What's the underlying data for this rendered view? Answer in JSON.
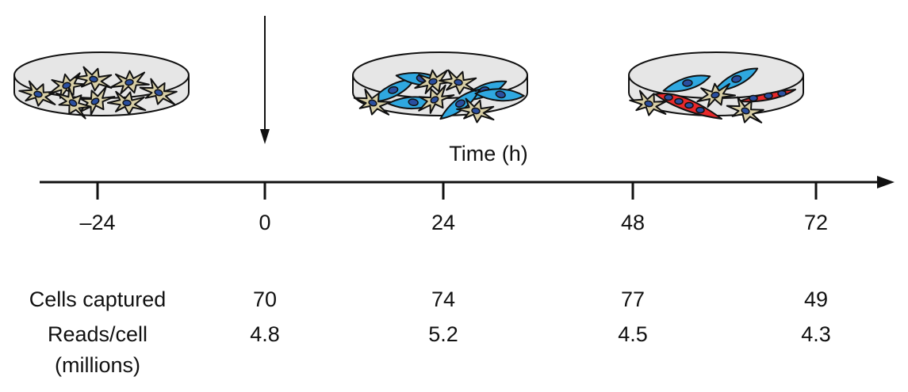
{
  "axis": {
    "title": "Time (h)",
    "ticks": [
      "–24",
      "0",
      "24",
      "48",
      "72"
    ]
  },
  "rows": {
    "cells_captured": {
      "label": "Cells captured",
      "values": [
        "70",
        "74",
        "77",
        "49"
      ]
    },
    "reads_per_cell": {
      "label_line1": "Reads/cell",
      "label_line2": "(millions)",
      "values": [
        "4.8",
        "5.2",
        "4.5",
        "4.3"
      ]
    }
  },
  "dishes": [
    {
      "time": "–24",
      "cell_types": [
        "fibroblast"
      ]
    },
    {
      "time": "24",
      "cell_types": [
        "fibroblast",
        "myoblast"
      ]
    },
    {
      "time": "72",
      "cell_types": [
        "fibroblast",
        "myoblast",
        "myotube"
      ]
    }
  ],
  "colors": {
    "fibroblast": "#d8cfa6",
    "myoblast": "#2fa8e0",
    "myotube": "#e8282a",
    "nucleus": "#2a4fa0",
    "dish_fill": "#e6e6e6",
    "axis": "#111111"
  }
}
